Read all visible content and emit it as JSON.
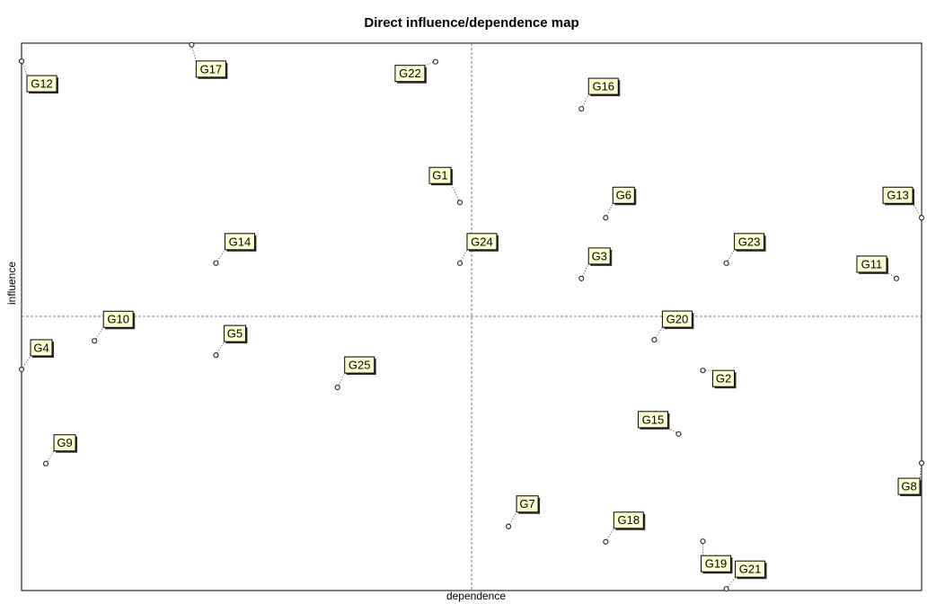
{
  "chart_data": {
    "type": "scatter",
    "title": "Direct influence/dependence map",
    "x_label": "dependence",
    "y_label": "influence",
    "labels": [
      "G12",
      "G17",
      "G22",
      "G16",
      "G1",
      "G6",
      "G13",
      "G14",
      "G24",
      "G3",
      "G23",
      "G11",
      "G10",
      "G5",
      "G20",
      "G4",
      "G25",
      "G2",
      "G15",
      "G9",
      "G8",
      "G7",
      "G18",
      "G19",
      "G21"
    ],
    "x": [
      0,
      18.9,
      46.0,
      62.2,
      48.7,
      64.9,
      100,
      21.6,
      48.7,
      62.2,
      78.3,
      97.2,
      8.1,
      21.6,
      70.3,
      0,
      35.1,
      75.7,
      73.0,
      2.7,
      100,
      54.1,
      64.9,
      75.7,
      78.3
    ],
    "y": [
      96.7,
      99.7,
      96.6,
      88.0,
      70.9,
      68.1,
      68.1,
      59.8,
      59.8,
      57.0,
      59.8,
      57.0,
      45.6,
      43.0,
      45.8,
      40.4,
      37.1,
      40.2,
      28.6,
      23.2,
      23.3,
      11.7,
      8.9,
      9.0,
      0.3
    ],
    "xlim": [
      0,
      100
    ],
    "ylim": [
      0,
      100
    ]
  }
}
